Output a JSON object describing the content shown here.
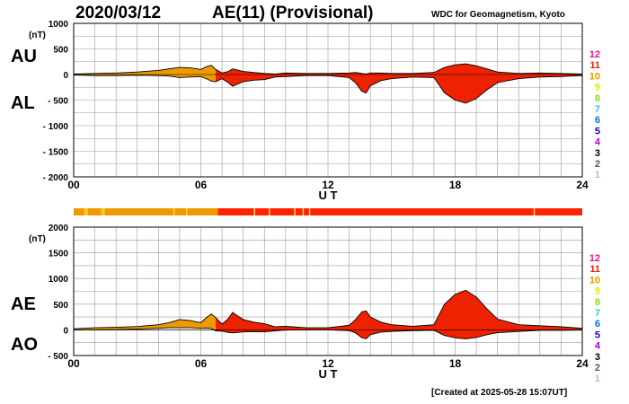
{
  "header": {
    "date": "2020/03/12",
    "title": "AE(11) (Provisional)",
    "org": "WDC for Geomagnetism, Kyoto"
  },
  "footer": {
    "created": "[Created at 2025-05-28 15:07UT]"
  },
  "colors": {
    "red": "#ee2200",
    "orange": "#ee9900",
    "grid": "#999999",
    "bar_red": "#ff2200",
    "bar_orange": "#ee9900",
    "bar_yellow": "#ffdd44"
  },
  "color_scale": {
    "labels": [
      "12",
      "11",
      "10",
      "9",
      "8",
      "7",
      "6",
      "5",
      "4",
      "3",
      "2",
      "1"
    ],
    "colors": [
      "#ee1188",
      "#ee2200",
      "#ee9900",
      "#ddee00",
      "#88dd22",
      "#22ccee",
      "#1166ee",
      "#2200aa",
      "#aa00dd",
      "#000000",
      "#555555",
      "#bbbbbb"
    ]
  },
  "chart_data": [
    {
      "type": "area",
      "panel_labels": [
        "AU",
        "AL"
      ],
      "ylabel": "(nT)",
      "xlabel": "U T",
      "xlim": [
        0,
        24
      ],
      "ylim": [
        -2000,
        1000
      ],
      "xticks": [
        "00",
        "06",
        "12",
        "18",
        "24"
      ],
      "yticks": [
        "1000",
        "500",
        "0",
        "- 500",
        "- 1000",
        "- 1500",
        "- 2000"
      ],
      "x": [
        0,
        1,
        2,
        3,
        4,
        4.5,
        5,
        5.5,
        6,
        6.3,
        6.5,
        6.7,
        7,
        7.3,
        7.5,
        8,
        8.5,
        9,
        9.5,
        10,
        11,
        12,
        13,
        13.3,
        13.6,
        13.8,
        14,
        14.5,
        15,
        16,
        17,
        17.5,
        18,
        18.5,
        19,
        19.5,
        20,
        21,
        22,
        23,
        24
      ],
      "series": [
        {
          "values": [
            10,
            20,
            30,
            50,
            80,
            110,
            140,
            130,
            100,
            160,
            180,
            100,
            30,
            60,
            110,
            60,
            40,
            20,
            10,
            30,
            20,
            20,
            30,
            40,
            20,
            10,
            30,
            30,
            20,
            20,
            40,
            140,
            190,
            210,
            170,
            110,
            50,
            20,
            30,
            20,
            10
          ]
        },
        {
          "values": [
            -10,
            -20,
            -20,
            -15,
            -20,
            -30,
            -60,
            -50,
            -40,
            -90,
            -130,
            -140,
            -80,
            -160,
            -230,
            -140,
            -110,
            -100,
            -50,
            -40,
            -20,
            -20,
            -60,
            -160,
            -330,
            -360,
            -220,
            -120,
            -80,
            -50,
            -60,
            -360,
            -500,
            -560,
            -470,
            -300,
            -160,
            -80,
            -50,
            -40,
            -20
          ]
        }
      ]
    },
    {
      "type": "area",
      "panel_labels": [
        "AE",
        "AO"
      ],
      "ylabel": "(nT)",
      "xlabel": "U T",
      "xlim": [
        0,
        24
      ],
      "ylim": [
        -500,
        2000
      ],
      "xticks": [
        "00",
        "06",
        "12",
        "18",
        "24"
      ],
      "yticks": [
        "2000",
        "1500",
        "1000",
        "500",
        "0",
        "- 500"
      ],
      "x": [
        0,
        1,
        2,
        3,
        4,
        4.5,
        5,
        5.5,
        6,
        6.3,
        6.5,
        6.7,
        7,
        7.3,
        7.5,
        8,
        8.5,
        9,
        9.5,
        10,
        11,
        12,
        13,
        13.3,
        13.6,
        13.8,
        14,
        14.5,
        15,
        16,
        17,
        17.5,
        18,
        18.5,
        19,
        19.5,
        20,
        21,
        22,
        23,
        24
      ],
      "series": [
        {
          "values": [
            20,
            40,
            50,
            65,
            100,
            140,
            200,
            180,
            140,
            250,
            310,
            240,
            110,
            220,
            340,
            200,
            150,
            120,
            60,
            70,
            40,
            40,
            90,
            200,
            350,
            370,
            250,
            150,
            100,
            70,
            100,
            500,
            690,
            770,
            640,
            410,
            210,
            100,
            80,
            60,
            30
          ]
        },
        {
          "values": [
            0,
            0,
            5,
            15,
            30,
            40,
            40,
            40,
            30,
            35,
            25,
            -20,
            -25,
            -50,
            -60,
            -40,
            -35,
            -40,
            -20,
            -5,
            0,
            0,
            -15,
            -60,
            -155,
            -175,
            -95,
            -45,
            -30,
            -15,
            -10,
            -110,
            -155,
            -175,
            -150,
            -95,
            -55,
            -30,
            -10,
            -10,
            -5
          ]
        }
      ]
    },
    {
      "type": "heatmap",
      "description_colors": [
        "orange",
        "red"
      ],
      "segments": [
        {
          "from": 0,
          "to": 6.8,
          "color": "orange"
        },
        {
          "from": 6.8,
          "to": 24,
          "color": "red"
        }
      ],
      "highlights": [
        0.5,
        0.6,
        1.3,
        1.4,
        4.7,
        5.3,
        8.5,
        9.2,
        10.4,
        10.8,
        11.1,
        21.7
      ]
    }
  ]
}
